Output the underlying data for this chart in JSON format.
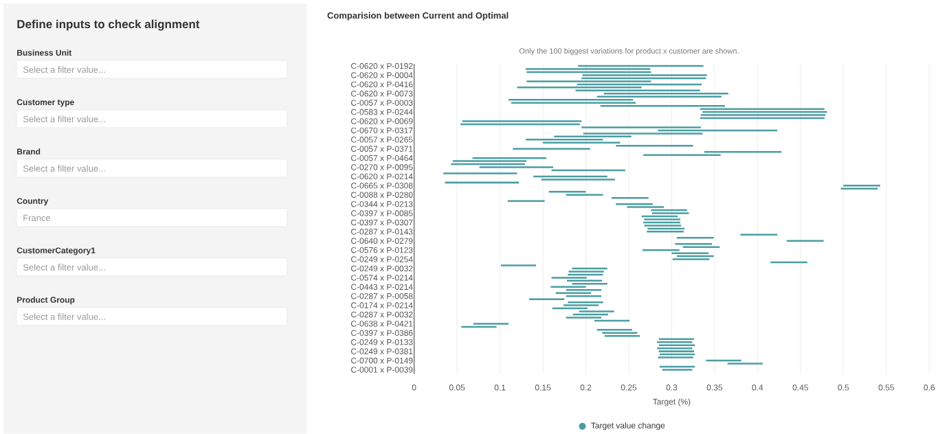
{
  "chart_data": [
    {
      "type": "other",
      "title": "Define inputs to check alignment",
      "annotations": [
        "Business Unit",
        "Select a filter value...",
        "Customer type",
        "Select a filter value...",
        "Brand",
        "Select a filter value...",
        "Country",
        "France",
        "CustomerCategory1",
        "Select a filter value...",
        "Product Group",
        "Select a filter value..."
      ]
    },
    {
      "type": "bar",
      "orientation": "horizontal",
      "title": "Comparision between Current and Optimal",
      "subtitle": "Only the 100 biggest variations for product x customer are shown.",
      "xlabel": "Target (%)",
      "categories": [
        "C-0620 x P-0192",
        null,
        null,
        "C-0620 x P-0004",
        null,
        null,
        "C-0620 x P-0416",
        null,
        null,
        "C-0620 x P-0073",
        null,
        null,
        "C-0057 x P-0003",
        null,
        null,
        "C-0583 x P-0244",
        null,
        null,
        "C-0620 x P-0069",
        null,
        null,
        "C-0670 x P-0317",
        null,
        null,
        "C-0057 x P-0265",
        null,
        null,
        "C-0057 x P-0371",
        null,
        null,
        "C-0057 x P-0464",
        null,
        null,
        "C-0270 x P-0095",
        null,
        null,
        "C-0620 x P-0214",
        null,
        null,
        "C-0665 x P-0308",
        null,
        null,
        "C-0088 x P-0280",
        null,
        null,
        "C-0344 x P-0213",
        null,
        null,
        "C-0397 x P-0085",
        null,
        null,
        "C-0397 x P-0307",
        null,
        null,
        "C-0287 x P-0143",
        null,
        null,
        "C-0640 x P-0279",
        null,
        null,
        "C-0576 x P-0123",
        null,
        null,
        "C-0249 x P-0254",
        null,
        null,
        "C-0249 x P-0032",
        null,
        null,
        "C-0574 x P-0214",
        null,
        null,
        "C-0443 x P-0214",
        null,
        null,
        "C-0287 x P-0058",
        null,
        null,
        "C-0174 x P-0214",
        null,
        null,
        "C-0287 x P-0032",
        null,
        null,
        "C-0638 x P-0421",
        null,
        null,
        "C-0397 x P-0386",
        null,
        null,
        "C-0249 x P-0133",
        null,
        null,
        "C-0249 x P-0381",
        null,
        null,
        "C-0700 x P-0149",
        null,
        null,
        "C-0001 x P-0039"
      ],
      "series": [
        {
          "name": "Target value change",
          "color": "#4a9da1",
          "base": [
            0.191,
            0.13,
            0.131,
            0.196,
            0.195,
            0.131,
            0.19,
            0.12,
            0.188,
            0.221,
            0.213,
            0.11,
            0.113,
            0.217,
            0.333,
            0.336,
            0.334,
            0.333,
            0.056,
            0.054,
            0.195,
            0.284,
            0.197,
            0.163,
            0.13,
            0.15,
            0.235,
            0.115,
            0.338,
            0.267,
            0.068,
            0.045,
            0.043,
            0.076,
            0.16,
            0.034,
            0.139,
            0.148,
            0.036,
            0.5,
            0.497,
            0.157,
            0.177,
            0.23,
            0.109,
            0.235,
            0.248,
            0.276,
            0.277,
            0.265,
            0.268,
            0.267,
            0.268,
            0.272,
            0.271,
            0.38,
            0.306,
            0.434,
            0.304,
            0.313,
            0.266,
            0.3,
            0.306,
            0.301,
            0.415,
            0.101,
            0.184,
            0.18,
            0.179,
            0.16,
            0.178,
            0.184,
            0.159,
            0.177,
            0.165,
            0.177,
            0.134,
            0.179,
            0.174,
            0.161,
            0.192,
            0.185,
            0.177,
            0.21,
            0.069,
            0.055,
            0.213,
            0.219,
            0.222,
            0.285,
            0.283,
            0.285,
            0.283,
            0.285,
            0.286,
            0.284,
            0.34,
            0.365,
            0.286,
            0.289
          ],
          "values": [
            0.146,
            0.145,
            0.145,
            0.145,
            0.145,
            0.145,
            0.145,
            0.145,
            0.145,
            0.145,
            0.145,
            0.145,
            0.145,
            0.145,
            0.145,
            0.145,
            0.145,
            0.145,
            0.139,
            0.139,
            0.139,
            0.139,
            0.139,
            0.09,
            0.09,
            0.09,
            0.09,
            0.09,
            0.09,
            0.09,
            0.086,
            0.086,
            0.086,
            0.086,
            0.086,
            0.086,
            0.086,
            0.086,
            0.086,
            0.043,
            0.043,
            0.043,
            0.043,
            0.043,
            0.043,
            0.043,
            0.043,
            0.042,
            0.043,
            0.042,
            0.042,
            0.043,
            0.043,
            0.043,
            0.043,
            0.043,
            0.043,
            0.043,
            0.043,
            0.043,
            0.043,
            0.043,
            0.043,
            0.043,
            0.043,
            0.041,
            0.041,
            0.041,
            0.041,
            0.041,
            0.041,
            0.041,
            0.041,
            0.041,
            0.041,
            0.041,
            0.041,
            0.041,
            0.041,
            0.041,
            0.041,
            0.041,
            0.041,
            0.041,
            0.041,
            0.041,
            0.041,
            0.041,
            0.041,
            0.041,
            0.041,
            0.042,
            0.041,
            0.041,
            0.041,
            0.041,
            0.041,
            0.041,
            0.041,
            0.035
          ]
        }
      ],
      "xlim": [
        0,
        0.6
      ],
      "xticks": [
        0,
        0.05,
        0.1,
        0.15,
        0.2,
        0.25,
        0.3,
        0.35,
        0.4,
        0.45,
        0.5,
        0.55,
        0.6
      ],
      "grid": "x",
      "legend": "bottom"
    }
  ]
}
